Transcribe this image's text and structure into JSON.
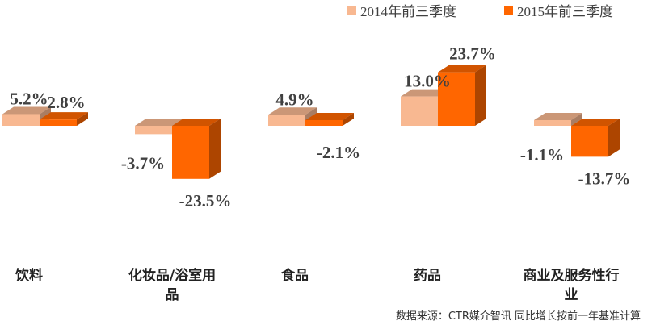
{
  "chart_data": {
    "type": "bar",
    "style": "3d-clustered-column",
    "categories": [
      [
        "饮料"
      ],
      [
        "化妆品/浴室用",
        "品"
      ],
      [
        "食品"
      ],
      [
        "药品"
      ],
      [
        "商业及服务性行",
        "业"
      ]
    ],
    "series": [
      {
        "name": "2014年前三季度",
        "color": "#f8b891",
        "values": [
          5.2,
          -3.7,
          4.9,
          13.0,
          -1.1
        ],
        "labels": [
          "5.2%",
          "-3.7%",
          "4.9%",
          "13.0%",
          "-1.1%"
        ]
      },
      {
        "name": "2015年前三季度",
        "color": "#ff6600",
        "values": [
          2.8,
          -23.5,
          -2.1,
          23.7,
          -13.7
        ],
        "labels": [
          "2.8%",
          "-23.5%",
          "-2.1%",
          "23.7%",
          "-13.7%"
        ]
      }
    ],
    "legend_position": "top-right",
    "grid": false
  },
  "footer": {
    "source": "数据来源：CTR媒介智讯   同比增长按前一年基准计算"
  }
}
